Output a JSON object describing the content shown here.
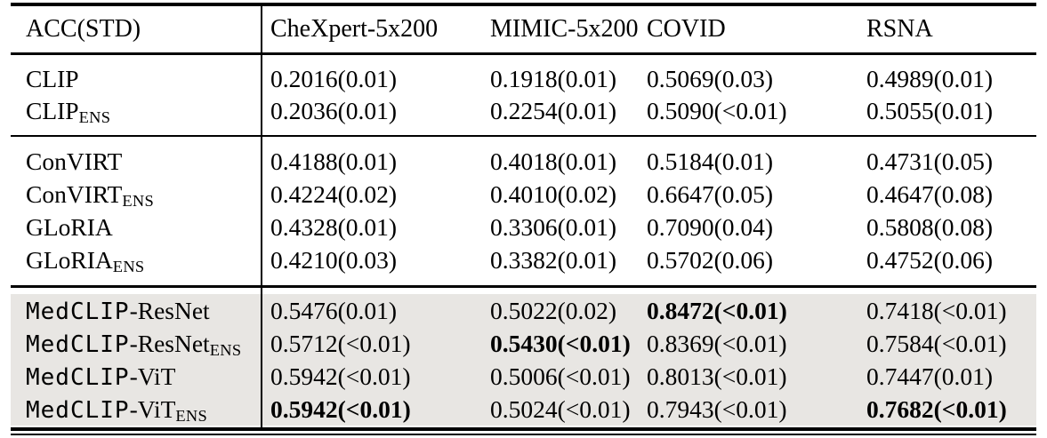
{
  "colors": {
    "highlight_row_bg": "#e8e6e3",
    "text": "#000000",
    "rule": "#000000"
  },
  "table": {
    "header": {
      "label": "ACC(STD)",
      "columns": [
        "CheXpert-5x200",
        "MIMIC-5x200",
        "COVID",
        "RSNA"
      ]
    },
    "groups": [
      {
        "highlighted": false,
        "rows": [
          {
            "model": {
              "tt": "",
              "serif": "CLIP",
              "sub": ""
            },
            "cells": [
              {
                "v": "0.2016(0.01)",
                "bold": false
              },
              {
                "v": "0.1918(0.01)",
                "bold": false
              },
              {
                "v": "0.5069(0.03)",
                "bold": false
              },
              {
                "v": "0.4989(0.01)",
                "bold": false
              }
            ]
          },
          {
            "model": {
              "tt": "",
              "serif": "CLIP",
              "sub": "ENS"
            },
            "cells": [
              {
                "v": "0.2036(0.01)",
                "bold": false
              },
              {
                "v": "0.2254(0.01)",
                "bold": false
              },
              {
                "v": "0.5090(<0.01)",
                "bold": false
              },
              {
                "v": "0.5055(0.01)",
                "bold": false
              }
            ]
          }
        ]
      },
      {
        "highlighted": false,
        "rows": [
          {
            "model": {
              "tt": "",
              "serif": "ConVIRT",
              "sub": ""
            },
            "cells": [
              {
                "v": "0.4188(0.01)",
                "bold": false
              },
              {
                "v": "0.4018(0.01)",
                "bold": false
              },
              {
                "v": "0.5184(0.01)",
                "bold": false
              },
              {
                "v": "0.4731(0.05)",
                "bold": false
              }
            ]
          },
          {
            "model": {
              "tt": "",
              "serif": "ConVIRT",
              "sub": "ENS"
            },
            "cells": [
              {
                "v": "0.4224(0.02)",
                "bold": false
              },
              {
                "v": "0.4010(0.02)",
                "bold": false
              },
              {
                "v": "0.6647(0.05)",
                "bold": false
              },
              {
                "v": "0.4647(0.08)",
                "bold": false
              }
            ]
          },
          {
            "model": {
              "tt": "",
              "serif": "GLoRIA",
              "sub": ""
            },
            "cells": [
              {
                "v": "0.4328(0.01)",
                "bold": false
              },
              {
                "v": "0.3306(0.01)",
                "bold": false
              },
              {
                "v": "0.7090(0.04)",
                "bold": false
              },
              {
                "v": "0.5808(0.08)",
                "bold": false
              }
            ]
          },
          {
            "model": {
              "tt": "",
              "serif": "GLoRIA",
              "sub": "ENS"
            },
            "cells": [
              {
                "v": "0.4210(0.03)",
                "bold": false
              },
              {
                "v": "0.3382(0.01)",
                "bold": false
              },
              {
                "v": "0.5702(0.06)",
                "bold": false
              },
              {
                "v": "0.4752(0.06)",
                "bold": false
              }
            ]
          }
        ]
      },
      {
        "highlighted": true,
        "rows": [
          {
            "model": {
              "tt": "MedCLIP",
              "serif": "-ResNet",
              "sub": ""
            },
            "cells": [
              {
                "v": "0.5476(0.01)",
                "bold": false
              },
              {
                "v": "0.5022(0.02)",
                "bold": false
              },
              {
                "v": "0.8472(<0.01)",
                "bold": true
              },
              {
                "v": "0.7418(<0.01)",
                "bold": false
              }
            ]
          },
          {
            "model": {
              "tt": "MedCLIP",
              "serif": "-ResNet",
              "sub": "ENS"
            },
            "cells": [
              {
                "v": "0.5712(<0.01)",
                "bold": false
              },
              {
                "v": "0.5430(<0.01)",
                "bold": true
              },
              {
                "v": "0.8369(<0.01)",
                "bold": false
              },
              {
                "v": "0.7584(<0.01)",
                "bold": false
              }
            ]
          },
          {
            "model": {
              "tt": "MedCLIP",
              "serif": "-ViT",
              "sub": ""
            },
            "cells": [
              {
                "v": "0.5942(<0.01)",
                "bold": false
              },
              {
                "v": "0.5006(<0.01)",
                "bold": false
              },
              {
                "v": "0.8013(<0.01)",
                "bold": false
              },
              {
                "v": "0.7447(0.01)",
                "bold": false
              }
            ]
          },
          {
            "model": {
              "tt": "MedCLIP",
              "serif": "-ViT",
              "sub": "ENS"
            },
            "cells": [
              {
                "v": "0.5942(<0.01)",
                "bold": true
              },
              {
                "v": "0.5024(<0.01)",
                "bold": false
              },
              {
                "v": "0.7943(<0.01)",
                "bold": false
              },
              {
                "v": "0.7682(<0.01)",
                "bold": true
              }
            ]
          }
        ]
      }
    ]
  }
}
